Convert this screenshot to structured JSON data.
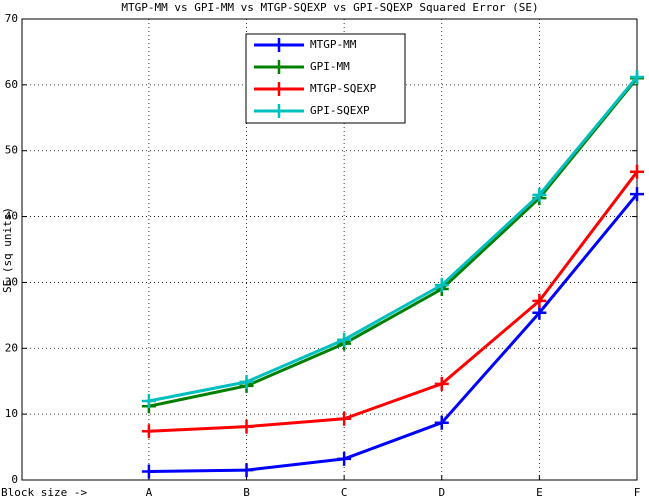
{
  "chart_data": {
    "type": "line",
    "title": "MTGP-MM vs GPI-MM vs MTGP-SQEXP vs GPI-SQEXP Squared Error (SE)",
    "y_label": "SE (sq units)",
    "x": [
      1,
      2,
      3,
      4,
      5,
      6
    ],
    "xlim": [
      -0.3,
      6
    ],
    "xticks": [
      {
        "value": -0.3,
        "label": "Block size ->"
      },
      {
        "value": 1,
        "label": "A"
      },
      {
        "value": 2,
        "label": "B"
      },
      {
        "value": 3,
        "label": "C"
      },
      {
        "value": 4,
        "label": "D"
      },
      {
        "value": 5,
        "label": "E"
      },
      {
        "value": 6,
        "label": "F"
      }
    ],
    "ylim": [
      0,
      70
    ],
    "yticks": [
      0,
      10,
      20,
      30,
      40,
      50,
      60,
      70
    ],
    "grid": true,
    "legend": "north",
    "series": [
      {
        "name": "MTGP-MM",
        "color": "#0000ff",
        "values": [
          1.3,
          1.5,
          3.2,
          8.7,
          25.4,
          43.4
        ]
      },
      {
        "name": "GPI-MM",
        "color": "#007f00",
        "values": [
          11.2,
          14.3,
          20.7,
          29.0,
          42.8,
          61.0
        ]
      },
      {
        "name": "MTGP-SQEXP",
        "color": "#ff0000",
        "values": [
          7.4,
          8.1,
          9.3,
          14.6,
          27.2,
          46.8
        ]
      },
      {
        "name": "GPI-SQEXP",
        "color": "#00bfbf",
        "values": [
          12.0,
          14.9,
          21.3,
          29.6,
          43.3,
          61.2
        ]
      }
    ]
  }
}
